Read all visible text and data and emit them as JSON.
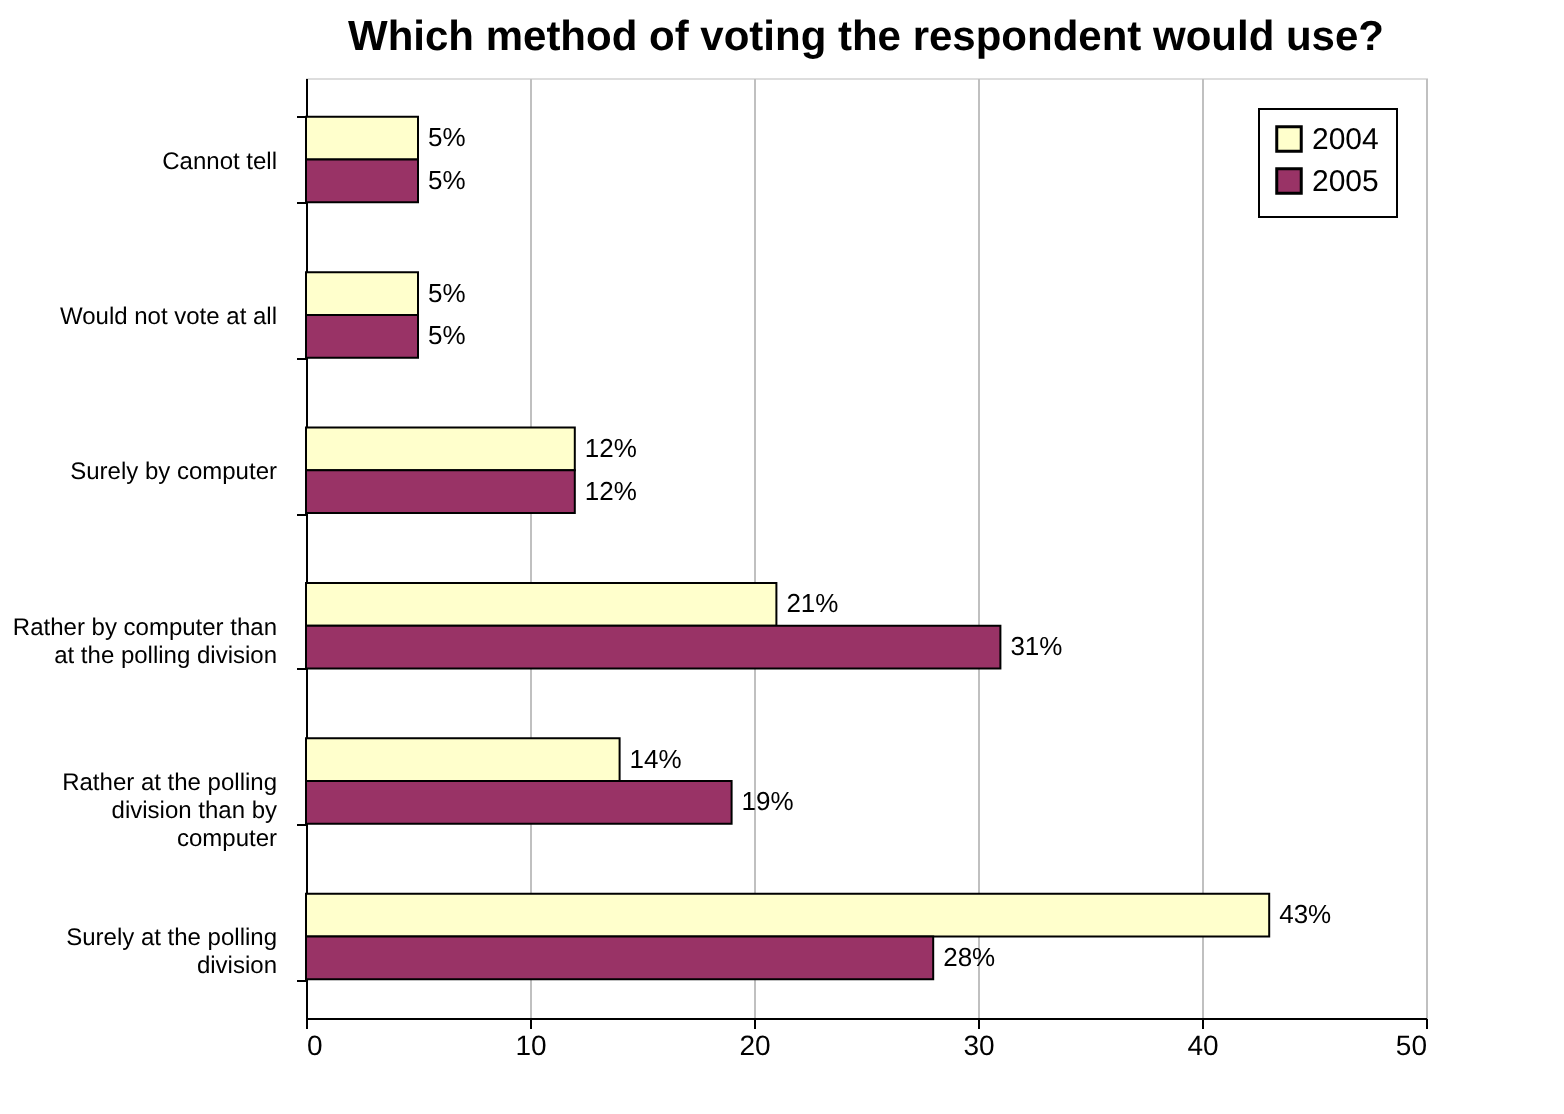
{
  "chart_data": {
    "type": "bar",
    "orientation": "horizontal",
    "title": "Which method of voting the respondent would use?",
    "categories": [
      "Cannot tell",
      "Would not vote at all",
      "Surely by computer",
      "Rather by computer than at the polling division",
      "Rather at the polling division than by computer",
      "Surely at the polling division"
    ],
    "series": [
      {
        "name": "2004",
        "color": "#ffffcc",
        "values": [
          5,
          5,
          12,
          21,
          14,
          43
        ],
        "value_labels": [
          "5%",
          "5%",
          "12%",
          "21%",
          "14%",
          "43%"
        ]
      },
      {
        "name": "2005",
        "color": "#993366",
        "values": [
          5,
          5,
          12,
          31,
          19,
          28
        ],
        "value_labels": [
          "5%",
          "5%",
          "12%",
          "31%",
          "19%",
          "28%"
        ]
      }
    ],
    "xlim": [
      0,
      50
    ],
    "xticks": [
      0,
      10,
      20,
      30,
      40,
      50
    ],
    "grid": "x",
    "legend": "right"
  }
}
